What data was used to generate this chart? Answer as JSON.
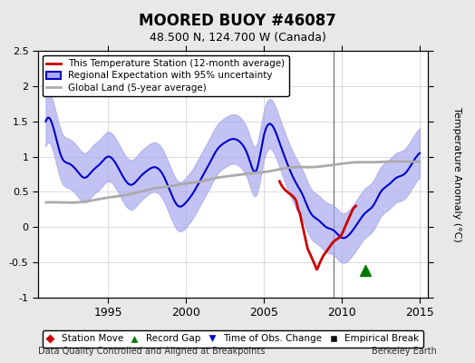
{
  "title": "MOORED BUOY #46087",
  "subtitle": "48.500 N, 124.700 W (Canada)",
  "ylabel": "Temperature Anomaly (°C)",
  "xlim": [
    1990.5,
    2015.5
  ],
  "ylim": [
    -1.0,
    2.5
  ],
  "yticks": [
    -1,
    -0.5,
    0,
    0.5,
    1,
    1.5,
    2,
    2.5
  ],
  "xticks": [
    1995,
    2000,
    2005,
    2010,
    2015
  ],
  "footer_left": "Data Quality Controlled and Aligned at Breakpoints",
  "footer_right": "Berkeley Earth",
  "background_color": "#e8e8e8",
  "plot_bg_color": "#ffffff",
  "blue_line_color": "#0000cc",
  "blue_fill_color": "#aaaaee",
  "red_line_color": "#cc0000",
  "gray_line_color": "#aaaaaa",
  "grid_color": "#cccccc",
  "marker_green": "#007700",
  "marker_red": "#cc0000",
  "marker_blue": "#0000cc",
  "marker_black": "#111111",
  "regional_expect_x": [
    1991.0,
    1991.5,
    1992.0,
    1992.5,
    1993.0,
    1993.5,
    1994.0,
    1994.5,
    1995.0,
    1995.5,
    1996.0,
    1996.5,
    1997.0,
    1997.5,
    1998.0,
    1998.5,
    1999.0,
    1999.5,
    2000.0,
    2000.5,
    2001.0,
    2001.5,
    2002.0,
    2002.5,
    2003.0,
    2003.5,
    2004.0,
    2004.5,
    2005.0,
    2005.5,
    2006.0,
    2006.5,
    2007.0,
    2007.5,
    2008.0,
    2008.5,
    2009.0,
    2009.5,
    2010.0,
    2010.5,
    2011.0,
    2011.5,
    2012.0,
    2012.5,
    2013.0,
    2013.5,
    2014.0,
    2014.5,
    2015.0
  ],
  "regional_expect_y": [
    1.5,
    1.4,
    1.0,
    0.9,
    0.8,
    0.7,
    0.8,
    0.9,
    1.0,
    0.9,
    0.7,
    0.6,
    0.7,
    0.8,
    0.85,
    0.75,
    0.5,
    0.3,
    0.35,
    0.5,
    0.7,
    0.9,
    1.1,
    1.2,
    1.25,
    1.2,
    1.0,
    0.8,
    1.3,
    1.45,
    1.2,
    0.9,
    0.65,
    0.45,
    0.2,
    0.1,
    0.0,
    -0.05,
    -0.15,
    -0.1,
    0.05,
    0.2,
    0.3,
    0.5,
    0.6,
    0.7,
    0.75,
    0.9,
    1.05
  ],
  "regional_upper_y": [
    1.85,
    1.75,
    1.35,
    1.25,
    1.15,
    1.05,
    1.15,
    1.25,
    1.35,
    1.25,
    1.05,
    0.95,
    1.05,
    1.15,
    1.2,
    1.1,
    0.85,
    0.65,
    0.7,
    0.85,
    1.05,
    1.25,
    1.45,
    1.55,
    1.6,
    1.55,
    1.35,
    1.15,
    1.65,
    1.8,
    1.55,
    1.25,
    1.0,
    0.8,
    0.55,
    0.45,
    0.35,
    0.3,
    0.2,
    0.25,
    0.4,
    0.55,
    0.65,
    0.85,
    0.95,
    1.05,
    1.1,
    1.25,
    1.4
  ],
  "regional_lower_y": [
    1.15,
    1.05,
    0.65,
    0.55,
    0.45,
    0.35,
    0.45,
    0.55,
    0.65,
    0.55,
    0.35,
    0.25,
    0.35,
    0.45,
    0.5,
    0.4,
    0.15,
    -0.05,
    0.0,
    0.15,
    0.35,
    0.55,
    0.75,
    0.85,
    0.9,
    0.85,
    0.65,
    0.45,
    0.95,
    1.1,
    0.85,
    0.55,
    0.3,
    0.1,
    -0.15,
    -0.25,
    -0.35,
    -0.4,
    -0.5,
    -0.45,
    -0.3,
    -0.15,
    -0.05,
    0.15,
    0.25,
    0.35,
    0.4,
    0.55,
    0.7
  ],
  "global_land_x": [
    1991.0,
    1992.0,
    1993.0,
    1994.0,
    1995.0,
    1996.0,
    1997.0,
    1998.0,
    1999.0,
    2000.0,
    2001.0,
    2002.0,
    2003.0,
    2004.0,
    2005.0,
    2006.0,
    2007.0,
    2008.0,
    2009.0,
    2010.0,
    2011.0,
    2012.0,
    2013.0,
    2014.0,
    2015.0
  ],
  "global_land_y": [
    0.35,
    0.35,
    0.35,
    0.38,
    0.42,
    0.45,
    0.5,
    0.55,
    0.58,
    0.62,
    0.65,
    0.7,
    0.73,
    0.76,
    0.78,
    0.82,
    0.85,
    0.85,
    0.87,
    0.9,
    0.92,
    0.92,
    0.93,
    0.93,
    0.93
  ],
  "station_x": [
    2006.0,
    2006.5,
    2007.0,
    2007.1,
    2007.2,
    2007.3,
    2007.4,
    2007.5,
    2007.6,
    2007.7,
    2007.8,
    2007.9,
    2008.0,
    2008.1,
    2008.2,
    2008.3,
    2008.4,
    2008.5,
    2008.6,
    2008.7,
    2009.0,
    2009.5,
    2010.0,
    2010.2,
    2010.4,
    2010.5,
    2010.6,
    2010.7,
    2010.8,
    2010.9
  ],
  "station_y": [
    0.65,
    0.5,
    0.4,
    0.35,
    0.25,
    0.2,
    0.1,
    0.0,
    -0.1,
    -0.2,
    -0.3,
    -0.35,
    -0.4,
    -0.45,
    -0.5,
    -0.55,
    -0.6,
    -0.55,
    -0.5,
    -0.45,
    -0.35,
    -0.2,
    -0.1,
    0.0,
    0.1,
    0.15,
    0.2,
    0.25,
    0.28,
    0.3
  ],
  "record_gap_x": 2011.5,
  "record_gap_y": -0.62,
  "vertical_line_x": 2009.5
}
